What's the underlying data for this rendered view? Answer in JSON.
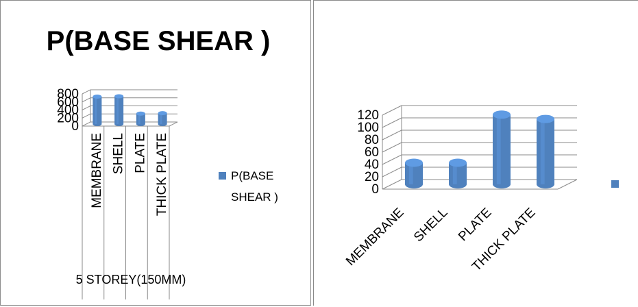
{
  "chart_data": [
    {
      "type": "bar",
      "title": "P(BASE SHEAR )",
      "xlabel": "5 STOREY(150MM)",
      "ylabel": "",
      "categories": [
        "MEMBRANE",
        "SHELL",
        "PLATE",
        "THICK PLATE"
      ],
      "series": [
        {
          "name": "P(BASE SHEAR )",
          "values": [
            680,
            690,
            260,
            270
          ]
        }
      ],
      "ylim": [
        0,
        800
      ],
      "yticks": [
        "0",
        "200",
        "400",
        "600",
        "800"
      ],
      "grid": true,
      "legend": "right",
      "color": "#4f81bd"
    },
    {
      "type": "bar",
      "title": "",
      "xlabel": "",
      "ylabel": "",
      "categories": [
        "MEMBRANE",
        "SHELL",
        "PLATE",
        "THICK PLATE"
      ],
      "series": [
        {
          "values": [
            35,
            35,
            113,
            106
          ]
        }
      ],
      "ylim": [
        0,
        120
      ],
      "yticks": [
        "0",
        "20",
        "40",
        "60",
        "80",
        "100",
        "120"
      ],
      "grid": true,
      "legend": "right",
      "color": "#4f81bd"
    }
  ]
}
